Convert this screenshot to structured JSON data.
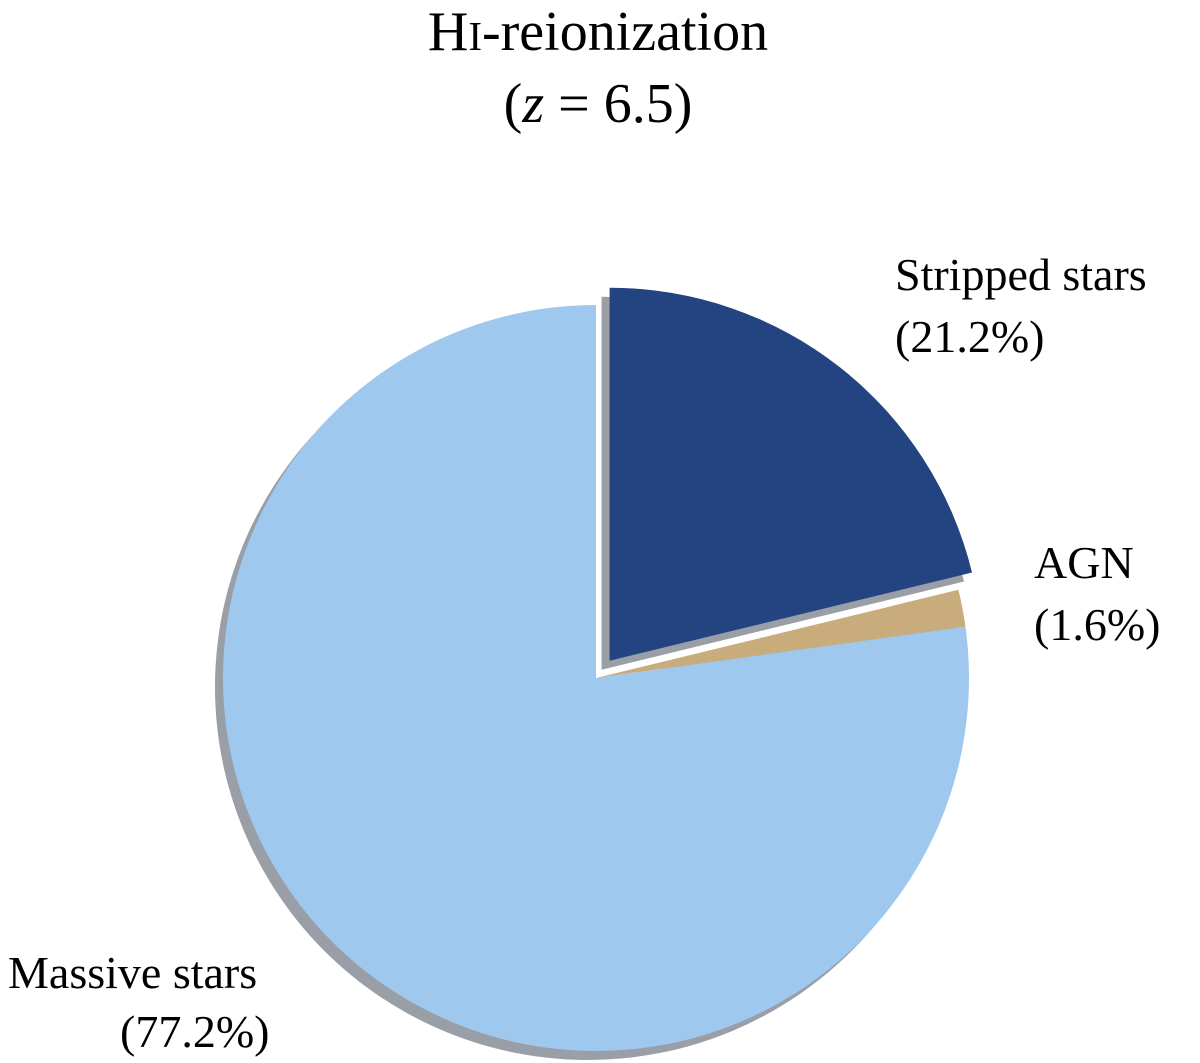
{
  "chart_data": {
    "type": "pie",
    "title": {
      "prefix": "H",
      "roman_numeral": "I",
      "suffix": "-reionization"
    },
    "subtitle": {
      "open": "(",
      "variable": "z",
      "rest": " = 6.5)"
    },
    "slices": [
      {
        "name": "Stripped stars",
        "value": 21.2,
        "value_label": "(21.2%)",
        "color": "#234381",
        "exploded": true
      },
      {
        "name": "AGN",
        "value": 1.6,
        "value_label": "(1.6%)",
        "color": "#c9ac7c",
        "exploded": false
      },
      {
        "name": "Massive stars",
        "value": 77.2,
        "value_label": "(77.2%)",
        "color": "#9fc8ef",
        "exploded": false
      }
    ],
    "shadow_color": "#9a9ea6",
    "start_angle_deg": 0,
    "direction": "clockwise"
  }
}
